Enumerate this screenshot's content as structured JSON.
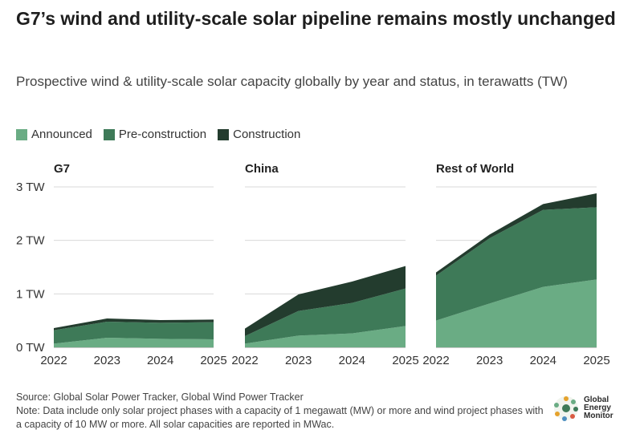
{
  "title": "G7’s wind and utility-scale solar pipeline remains mostly unchanged",
  "subtitle": "Prospective wind & utility-scale solar capacity globally by year and status, in terawatts (TW)",
  "colors": {
    "announced": "#6aac84",
    "preconstruction": "#3e7a58",
    "construction": "#233c2e",
    "grid": "#d9d9d9"
  },
  "chart_data": {
    "type": "area",
    "stacked": true,
    "x": [
      "2022",
      "2023",
      "2024",
      "2025"
    ],
    "yticks": [
      "0 TW",
      "1 TW",
      "2 TW",
      "3 TW"
    ],
    "ylim": [
      0,
      3
    ],
    "legend": [
      "Announced",
      "Pre-construction",
      "Construction"
    ],
    "panels": [
      {
        "name": "G7",
        "series": [
          {
            "name": "Announced",
            "values": [
              0.07,
              0.18,
              0.16,
              0.15
            ]
          },
          {
            "name": "Pre-construction",
            "values": [
              0.25,
              0.3,
              0.3,
              0.32
            ]
          },
          {
            "name": "Construction",
            "values": [
              0.04,
              0.06,
              0.05,
              0.05
            ]
          }
        ]
      },
      {
        "name": "China",
        "series": [
          {
            "name": "Announced",
            "values": [
              0.07,
              0.22,
              0.26,
              0.4
            ]
          },
          {
            "name": "Pre-construction",
            "values": [
              0.14,
              0.46,
              0.57,
              0.7
            ]
          },
          {
            "name": "Construction",
            "values": [
              0.14,
              0.31,
              0.4,
              0.42
            ]
          }
        ]
      },
      {
        "name": "Rest of World",
        "series": [
          {
            "name": "Announced",
            "values": [
              0.5,
              0.82,
              1.13,
              1.27
            ]
          },
          {
            "name": "Pre-construction",
            "values": [
              0.84,
              1.22,
              1.44,
              1.35
            ]
          },
          {
            "name": "Construction",
            "values": [
              0.06,
              0.07,
              0.11,
              0.26
            ]
          }
        ]
      }
    ]
  },
  "footer": {
    "source": "Source: Global Solar Power Tracker, Global Wind Power Tracker",
    "note": "Note: Data include only solar project phases with a capacity of 1 megawatt (MW) or more and wind project phases with a capacity of 10 MW or more. All solar capacities are reported in MWac."
  },
  "logo": {
    "line1": "Global",
    "line2": "Energy",
    "line3": "Monitor"
  }
}
